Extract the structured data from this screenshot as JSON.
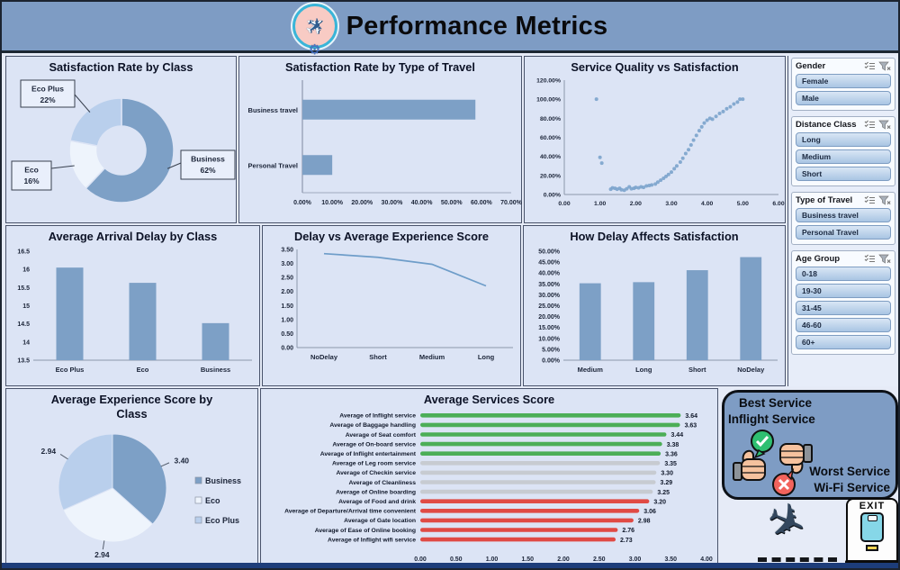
{
  "header": {
    "title": "Performance Metrics",
    "logo": "airplane-gear-logo"
  },
  "colors": {
    "accent_bar": "#7da0c6",
    "good": "#4cae57",
    "neutral": "#c7cbd1",
    "bad": "#e04a45",
    "header_bg": "#7e9cc4",
    "panel_bg": "#dce4f5",
    "navy_strip": "#1d3d7a",
    "pie_business": "#7da0c6",
    "pie_eco": "#eef4fc",
    "pie_eco_plus": "#b9cfec"
  },
  "chart_data": [
    {
      "type": "pie",
      "title": "Satisfaction Rate by Class",
      "style": "donut",
      "segments": [
        {
          "label": "Business",
          "value": 62,
          "color": "#7da0c6"
        },
        {
          "label": "Eco",
          "value": 16,
          "color": "#eef4fc"
        },
        {
          "label": "Eco Plus",
          "value": 22,
          "color": "#b9cfec"
        }
      ]
    },
    {
      "type": "bar",
      "title": "Satisfaction Rate by Type of Travel",
      "orientation": "horizontal",
      "categories": [
        "Business travel",
        "Personal Travel"
      ],
      "values": [
        0.58,
        0.1
      ],
      "xlim": [
        0,
        0.7
      ],
      "xtick_labels": [
        "0.00%",
        "10.00%",
        "20.00%",
        "30.00%",
        "40.00%",
        "50.00%",
        "60.00%",
        "70.00%"
      ],
      "color": "#7da0c6"
    },
    {
      "type": "scatter",
      "title": "Service Quality vs Satisfaction",
      "xlim": [
        0,
        6
      ],
      "ylim": [
        0,
        1.2
      ],
      "xtick_labels": [
        "0.00",
        "1.00",
        "2.00",
        "3.00",
        "4.00",
        "5.00",
        "6.00"
      ],
      "ytick_labels": [
        "0.00%",
        "20.00%",
        "40.00%",
        "60.00%",
        "80.00%",
        "100.00%",
        "120.00%"
      ],
      "color": "#7ba3cc",
      "points": [
        [
          0.9,
          1.0
        ],
        [
          1.0,
          0.39
        ],
        [
          1.05,
          0.33
        ],
        [
          1.3,
          0.055
        ],
        [
          1.35,
          0.07
        ],
        [
          1.42,
          0.065
        ],
        [
          1.48,
          0.055
        ],
        [
          1.55,
          0.065
        ],
        [
          1.6,
          0.05
        ],
        [
          1.68,
          0.045
        ],
        [
          1.75,
          0.06
        ],
        [
          1.82,
          0.08
        ],
        [
          1.88,
          0.06
        ],
        [
          1.95,
          0.065
        ],
        [
          2.0,
          0.075
        ],
        [
          2.08,
          0.07
        ],
        [
          2.15,
          0.08
        ],
        [
          2.22,
          0.075
        ],
        [
          2.3,
          0.09
        ],
        [
          2.38,
          0.095
        ],
        [
          2.45,
          0.1
        ],
        [
          2.55,
          0.11
        ],
        [
          2.62,
          0.13
        ],
        [
          2.7,
          0.15
        ],
        [
          2.78,
          0.17
        ],
        [
          2.85,
          0.19
        ],
        [
          2.92,
          0.21
        ],
        [
          3.0,
          0.235
        ],
        [
          3.08,
          0.27
        ],
        [
          3.15,
          0.3
        ],
        [
          3.25,
          0.34
        ],
        [
          3.32,
          0.38
        ],
        [
          3.4,
          0.43
        ],
        [
          3.48,
          0.47
        ],
        [
          3.55,
          0.52
        ],
        [
          3.62,
          0.57
        ],
        [
          3.7,
          0.62
        ],
        [
          3.78,
          0.67
        ],
        [
          3.85,
          0.71
        ],
        [
          3.92,
          0.75
        ],
        [
          4.0,
          0.78
        ],
        [
          4.08,
          0.8
        ],
        [
          4.15,
          0.79
        ],
        [
          4.25,
          0.82
        ],
        [
          4.35,
          0.85
        ],
        [
          4.45,
          0.87
        ],
        [
          4.55,
          0.9
        ],
        [
          4.65,
          0.92
        ],
        [
          4.75,
          0.95
        ],
        [
          4.85,
          0.97
        ],
        [
          4.92,
          1.0
        ],
        [
          5.0,
          1.0
        ]
      ]
    },
    {
      "type": "bar",
      "title": "Average Arrival Delay by Class",
      "categories": [
        "Eco Plus",
        "Eco",
        "Business"
      ],
      "values": [
        16.05,
        15.63,
        14.52
      ],
      "ylim": [
        13.5,
        16.5
      ],
      "ytick_labels": [
        "13.5",
        "14",
        "14.5",
        "15",
        "15.5",
        "16",
        "16.5"
      ],
      "color": "#7da0c6"
    },
    {
      "type": "line",
      "title": "Delay vs Average Experience Score",
      "categories": [
        "NoDelay",
        "Short",
        "Medium",
        "Long"
      ],
      "values": [
        3.35,
        3.22,
        2.97,
        2.2
      ],
      "ylim": [
        0,
        3.5
      ],
      "ytick_labels": [
        "0.00",
        "0.50",
        "1.00",
        "1.50",
        "2.00",
        "2.50",
        "3.00",
        "3.50"
      ],
      "color": "#6e9dc9"
    },
    {
      "type": "bar",
      "title": "How Delay Affects Satisfaction",
      "categories": [
        "Medium",
        "Long",
        "Short",
        "NoDelay"
      ],
      "values": [
        0.353,
        0.358,
        0.413,
        0.473
      ],
      "ylim": [
        0,
        0.5
      ],
      "ytick_labels": [
        "0.00%",
        "5.00%",
        "10.00%",
        "15.00%",
        "20.00%",
        "25.00%",
        "30.00%",
        "35.00%",
        "40.00%",
        "45.00%",
        "50.00%"
      ],
      "color": "#7da0c6"
    },
    {
      "type": "pie",
      "title": "Average Experience Score by Class",
      "segments": [
        {
          "label": "Business",
          "value": 3.4,
          "color": "#7da0c6"
        },
        {
          "label": "Eco",
          "value": 2.94,
          "color": "#eef4fc"
        },
        {
          "label": "Eco Plus",
          "value": 2.94,
          "color": "#b9cfec"
        }
      ],
      "legend_position": "right"
    },
    {
      "type": "bar",
      "title": "Average Services Score",
      "orientation": "horizontal",
      "xlim": [
        0,
        4
      ],
      "xtick_labels": [
        "0.00",
        "0.50",
        "1.00",
        "1.50",
        "2.00",
        "2.50",
        "3.00",
        "3.50",
        "4.00"
      ],
      "items": [
        {
          "label": "Average of Inflight service",
          "value": 3.64,
          "status": "good"
        },
        {
          "label": "Average of Baggage handling",
          "value": 3.63,
          "status": "good"
        },
        {
          "label": "Average of Seat comfort",
          "value": 3.44,
          "status": "good"
        },
        {
          "label": "Average of On-board service",
          "value": 3.38,
          "status": "good"
        },
        {
          "label": "Average of Inflight entertainment",
          "value": 3.36,
          "status": "good"
        },
        {
          "label": "Average of Leg room service",
          "value": 3.35,
          "status": "neutral"
        },
        {
          "label": "Average of Checkin service",
          "value": 3.3,
          "status": "neutral"
        },
        {
          "label": "Average of Cleanliness",
          "value": 3.29,
          "status": "neutral"
        },
        {
          "label": "Average of Online boarding",
          "value": 3.25,
          "status": "neutral"
        },
        {
          "label": "Average of Food and drink",
          "value": 3.2,
          "status": "bad"
        },
        {
          "label": "Average of Departure/Arrival time convenient",
          "value": 3.06,
          "status": "bad"
        },
        {
          "label": "Average of Gate location",
          "value": 2.98,
          "status": "bad"
        },
        {
          "label": "Average of Ease of Online booking",
          "value": 2.76,
          "status": "bad"
        },
        {
          "label": "Average of Inflight wifi service",
          "value": 2.73,
          "status": "bad"
        }
      ]
    }
  ],
  "slicers": [
    {
      "title": "Gender",
      "items": [
        "Female",
        "Male"
      ]
    },
    {
      "title": "Distance Class",
      "items": [
        "Long",
        "Medium",
        "Short"
      ]
    },
    {
      "title": "Type of Travel",
      "items": [
        "Business travel",
        "Personal Travel"
      ]
    },
    {
      "title": "Age Group",
      "items": [
        "0-18",
        "19-30",
        "31-45",
        "46-60",
        "60+"
      ]
    }
  ],
  "badges": {
    "best_label": "Best Service",
    "best_value": "Inflight Service",
    "worst_label": "Worst Service",
    "worst_value": "Wi-Fi Service"
  },
  "exit_label": "EXIT"
}
